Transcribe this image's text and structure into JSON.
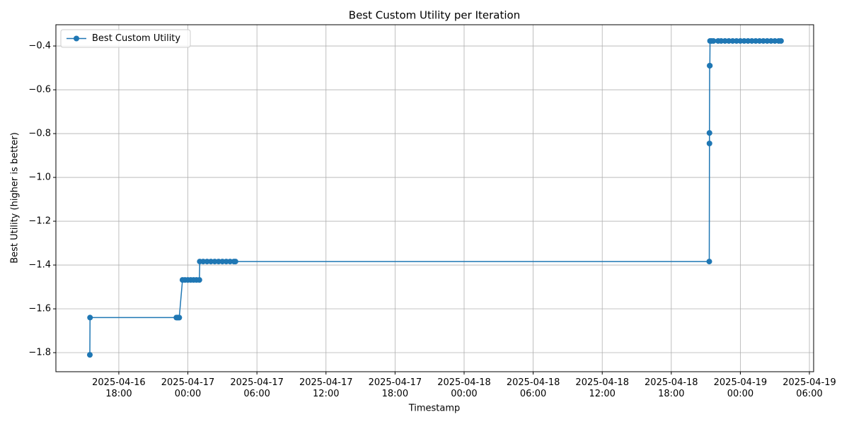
{
  "chart_data": {
    "type": "line",
    "title": "Best Custom Utility per Iteration",
    "xlabel": "Timestamp",
    "ylabel": "Best Utility (higher is better)",
    "x": [
      "2025-04-16 15:29",
      "2025-04-16 15:30",
      "2025-04-16 23:00",
      "2025-04-16 23:05",
      "2025-04-16 23:10",
      "2025-04-16 23:15",
      "2025-04-16 23:32",
      "2025-04-16 23:45",
      "2025-04-17 00:00",
      "2025-04-17 00:15",
      "2025-04-17 00:30",
      "2025-04-17 00:45",
      "2025-04-17 01:00",
      "2025-04-17 01:02",
      "2025-04-17 01:20",
      "2025-04-17 01:40",
      "2025-04-17 02:00",
      "2025-04-17 02:20",
      "2025-04-17 02:40",
      "2025-04-17 03:00",
      "2025-04-17 03:20",
      "2025-04-17 03:40",
      "2025-04-17 04:00",
      "2025-04-17 04:08",
      "2025-04-18 21:18",
      "2025-04-18 21:19",
      "2025-04-18 21:19",
      "2025-04-18 21:20",
      "2025-04-18 21:21",
      "2025-04-18 21:22",
      "2025-04-18 21:30",
      "2025-04-18 21:40",
      "2025-04-18 22:04",
      "2025-04-18 22:20",
      "2025-04-18 22:40",
      "2025-04-18 23:00",
      "2025-04-18 23:20",
      "2025-04-18 23:40",
      "2025-04-19 00:00",
      "2025-04-19 00:20",
      "2025-04-19 00:40",
      "2025-04-19 01:00",
      "2025-04-19 01:20",
      "2025-04-19 01:40",
      "2025-04-19 02:00",
      "2025-04-19 02:20",
      "2025-04-19 02:40",
      "2025-04-19 03:00",
      "2025-04-19 03:20",
      "2025-04-19 03:32"
    ],
    "series": [
      {
        "name": "Best Custom Utility",
        "color": "#1f77b4",
        "values": [
          -1.81,
          -1.64,
          -1.64,
          -1.64,
          -1.64,
          -1.64,
          -1.468,
          -1.468,
          -1.468,
          -1.468,
          -1.468,
          -1.468,
          -1.468,
          -1.384,
          -1.384,
          -1.384,
          -1.384,
          -1.384,
          -1.384,
          -1.384,
          -1.384,
          -1.384,
          -1.384,
          -1.384,
          -1.384,
          -0.845,
          -0.797,
          -0.49,
          -0.49,
          -0.377,
          -0.377,
          -0.377,
          -0.377,
          -0.377,
          -0.377,
          -0.377,
          -0.377,
          -0.377,
          -0.377,
          -0.377,
          -0.377,
          -0.377,
          -0.377,
          -0.377,
          -0.377,
          -0.377,
          -0.377,
          -0.377,
          -0.377,
          -0.377
        ]
      }
    ],
    "xlim": [
      "2025-04-16 12:32",
      "2025-04-19 06:22"
    ],
    "xticks": [
      {
        "value": "2025-04-16 18:00",
        "label": "2025-04-16\n18:00"
      },
      {
        "value": "2025-04-17 00:00",
        "label": "2025-04-17\n00:00"
      },
      {
        "value": "2025-04-17 06:00",
        "label": "2025-04-17\n06:00"
      },
      {
        "value": "2025-04-17 12:00",
        "label": "2025-04-17\n12:00"
      },
      {
        "value": "2025-04-17 18:00",
        "label": "2025-04-17\n18:00"
      },
      {
        "value": "2025-04-18 00:00",
        "label": "2025-04-18\n00:00"
      },
      {
        "value": "2025-04-18 06:00",
        "label": "2025-04-18\n06:00"
      },
      {
        "value": "2025-04-18 12:00",
        "label": "2025-04-18\n12:00"
      },
      {
        "value": "2025-04-18 18:00",
        "label": "2025-04-18\n18:00"
      },
      {
        "value": "2025-04-19 00:00",
        "label": "2025-04-19\n00:00"
      },
      {
        "value": "2025-04-19 06:00",
        "label": "2025-04-19\n06:00"
      }
    ],
    "ylim": [
      -1.887,
      -0.303
    ],
    "yticks": [
      {
        "value": -1.8,
        "label": "−1.8"
      },
      {
        "value": -1.6,
        "label": "−1.6"
      },
      {
        "value": -1.4,
        "label": "−1.4"
      },
      {
        "value": -1.2,
        "label": "−1.2"
      },
      {
        "value": -1.0,
        "label": "−1.0"
      },
      {
        "value": -0.8,
        "label": "−0.8"
      },
      {
        "value": -0.6,
        "label": "−0.6"
      },
      {
        "value": -0.4,
        "label": "−0.4"
      }
    ],
    "grid": true,
    "legend": "upper left"
  }
}
